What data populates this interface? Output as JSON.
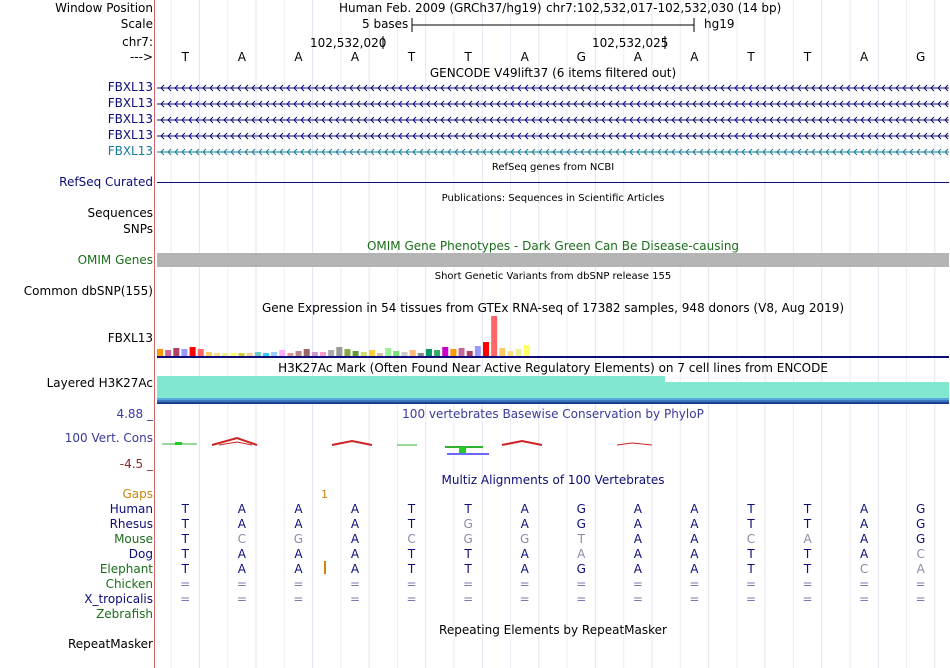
{
  "header": {
    "window_position_label": "Window Position",
    "scale_label": "Scale",
    "chrom_label": "chr7:",
    "arrow_label": "--->",
    "assembly_text": "Human Feb. 2009 (GRCh37/hg19)",
    "position_text": "chr7:102,532,017-102,532,030 (14 bp)",
    "scale_text": "5 bases",
    "db_text": "hg19",
    "coord_1": "102,532,020",
    "coord_2": "102,532,025"
  },
  "bases": [
    "T",
    "A",
    "A",
    "A",
    "T",
    "T",
    "A",
    "G",
    "A",
    "A",
    "T",
    "T",
    "A",
    "G"
  ],
  "tracks": {
    "gencode": {
      "title": "GENCODE V49lift37 (6 items filtered out)",
      "items": [
        "FBXL13",
        "FBXL13",
        "FBXL13",
        "FBXL13",
        "FBXL13"
      ],
      "colors": [
        "#0c0c78",
        "#0c0c78",
        "#0c0c78",
        "#0c0c78",
        "#177a9a"
      ]
    },
    "refseq": {
      "title": "RefSeq genes from NCBI",
      "label": "RefSeq Curated"
    },
    "publications": {
      "title": "Publications: Sequences in Scientific Articles",
      "label_seq": "Sequences",
      "label_snp": "SNPs"
    },
    "omim": {
      "title": "OMIM Gene Phenotypes - Dark Green Can Be Disease-causing",
      "label": "OMIM Genes"
    },
    "dbsnp": {
      "title": "Short Genetic Variants from dbSNP release 155",
      "label": "Common dbSNP(155)"
    },
    "gtex": {
      "title": "Gene Expression in 54 tissues from GTEx RNA-seq of 17382 samples, 948 donors (V8, Aug 2019)",
      "label": "FBXL13"
    },
    "h3k27ac": {
      "title": "H3K27Ac Mark (Often Found Near Active Regulatory Elements) on 7 cell lines from ENCODE",
      "label": "Layered H3K27Ac"
    },
    "phylop": {
      "title": "100 vertebrates Basewise Conservation by PhyloP",
      "label": "100 Vert. Cons",
      "max": "4.88 _",
      "min": "-4.5 _"
    },
    "multiz": {
      "title": "Multiz Alignments of 100 Vertebrates",
      "gaps_label": "Gaps",
      "gap_value": "1",
      "species": [
        {
          "name": "Human",
          "color": "#0c0c78",
          "seq": "TAAATTAGAATTAG"
        },
        {
          "name": "Rhesus",
          "color": "#0c0c78",
          "seq": "TAAATGAGAATTAG"
        },
        {
          "name": "Mouse",
          "color": "#1a6e1a",
          "seq": "TCGACGGTAACAAG"
        },
        {
          "name": "Dog",
          "color": "#0c0c78",
          "seq": "TAAATTAAAATTAC"
        },
        {
          "name": "Elephant",
          "color": "#1a6e1a",
          "seq": "TAAATTAGAATTCA"
        },
        {
          "name": "Chicken",
          "color": "#1a6e1a",
          "seq": "=============="
        },
        {
          "name": "X_tropicalis",
          "color": "#0c0c78",
          "seq": "=============="
        },
        {
          "name": "Zebrafish",
          "color": "#1a6e1a",
          "seq": ""
        }
      ]
    },
    "repeatmasker": {
      "title": "Repeating Elements by RepeatMasker",
      "label": "RepeatMasker"
    }
  },
  "colors": {
    "navy": "#0c0c78",
    "omim_green": "#1a6e1a",
    "gaps_orange": "#c8860a",
    "h3k27ac": "#7fe8cf",
    "phylop_blue": "#3a3a9a",
    "phylop_red": "#cc2222"
  }
}
